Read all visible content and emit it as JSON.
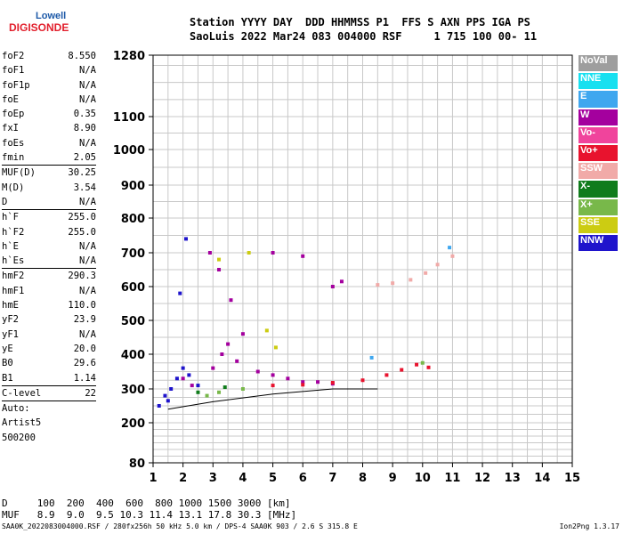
{
  "logo": {
    "top": "Lowell",
    "bottom": "DIGISONDE"
  },
  "header": {
    "line1": "Station YYYY DAY  DDD HHMMSS P1  FFS S AXN PPS IGA PS",
    "line2": "SaoLuis 2022 Mar24 083 004000 RSF     1 715 100 00- 11"
  },
  "params": [
    {
      "label": "foF2",
      "value": "8.550"
    },
    {
      "label": "foF1",
      "value": "N/A"
    },
    {
      "label": "foF1p",
      "value": "N/A"
    },
    {
      "label": "foE",
      "value": "N/A"
    },
    {
      "label": "foEp",
      "value": "0.35"
    },
    {
      "label": "fxI",
      "value": "8.90"
    },
    {
      "label": "foEs",
      "value": "N/A"
    },
    {
      "label": "fmin",
      "value": "2.05",
      "sep_after": true
    },
    {
      "label": "MUF(D)",
      "value": "30.25"
    },
    {
      "label": "M(D)",
      "value": "3.54"
    },
    {
      "label": "D",
      "value": "N/A",
      "sep_after": true
    },
    {
      "label": "h`F",
      "value": "255.0"
    },
    {
      "label": "h`F2",
      "value": "255.0"
    },
    {
      "label": "h`E",
      "value": "N/A"
    },
    {
      "label": "h`Es",
      "value": "N/A",
      "sep_after": true
    },
    {
      "label": "hmF2",
      "value": "290.3"
    },
    {
      "label": "hmF1",
      "value": "N/A"
    },
    {
      "label": "hmE",
      "value": "110.0"
    },
    {
      "label": "yF2",
      "value": "23.9"
    },
    {
      "label": "yF1",
      "value": "N/A"
    },
    {
      "label": "yE",
      "value": "20.0"
    },
    {
      "label": "B0",
      "value": "29.6"
    },
    {
      "label": "B1",
      "value": "1.14",
      "sep_after": true
    },
    {
      "label": "C-level",
      "value": "22",
      "sep_after": true
    }
  ],
  "params_footer": [
    "Auto:",
    "Artist5",
    "500200"
  ],
  "legend": [
    {
      "label": "NoVal",
      "color": "#9e9e9e"
    },
    {
      "label": "NNE",
      "color": "#18e0f0"
    },
    {
      "label": "E",
      "color": "#3fa7ef"
    },
    {
      "label": "W",
      "color": "#a4009e"
    },
    {
      "label": "Vo-",
      "color": "#f0449c"
    },
    {
      "label": "Vo+",
      "color": "#e8132e"
    },
    {
      "label": "SSW",
      "color": "#f1aaa8"
    },
    {
      "label": "X-",
      "color": "#107c1c"
    },
    {
      "label": "X+",
      "color": "#78b84a"
    },
    {
      "label": "SSE",
      "color": "#cccc12"
    },
    {
      "label": "NNW",
      "color": "#1f14cc"
    }
  ],
  "footer": {
    "d_line": "D     100  200  400  600  800 1000 1500 3000 [km]",
    "muf_line": "MUF   8.9  9.0  9.5 10.3 11.4 13.1 17.8 30.3 [MHz]",
    "file": "SAA0K_2022083004000.RSF / 280fx256h 50 kHz 5.0 km / DPS-4 SAA0K 903 / 2.6 S 315.8 E",
    "version": "Ion2Png 1.3.17"
  },
  "chart_data": {
    "type": "scatter",
    "x_ticks": [
      "1",
      "2",
      "3",
      "4",
      "5",
      "6",
      "7",
      "8",
      "9",
      "10",
      "11",
      "12",
      "13",
      "14",
      "15"
    ],
    "y_ticks": [
      "80",
      "200",
      "300",
      "400",
      "500",
      "600",
      "700",
      "800",
      "900",
      "1000",
      "1100",
      "1280"
    ],
    "xlim": [
      1,
      15
    ],
    "y_axis": {
      "scale": "nonlinear",
      "tick_values": [
        80,
        200,
        300,
        400,
        500,
        600,
        700,
        800,
        900,
        1000,
        1100,
        1280
      ]
    },
    "grid": true,
    "series": [
      {
        "name": "W",
        "color": "#a4009e",
        "points": [
          [
            2.0,
            330
          ],
          [
            2.3,
            310
          ],
          [
            3.0,
            360
          ],
          [
            3.3,
            400
          ],
          [
            3.5,
            430
          ],
          [
            3.8,
            380
          ],
          [
            4.0,
            460
          ],
          [
            4.5,
            350
          ],
          [
            5.0,
            340
          ],
          [
            5.5,
            330
          ],
          [
            6.0,
            320
          ],
          [
            6.5,
            320
          ],
          [
            7.0,
            315
          ],
          [
            2.9,
            700
          ],
          [
            3.2,
            650
          ],
          [
            3.6,
            560
          ],
          [
            5.0,
            700
          ],
          [
            6.0,
            690
          ],
          [
            7.0,
            600
          ],
          [
            7.3,
            615
          ]
        ]
      },
      {
        "name": "NNW",
        "color": "#1f14cc",
        "points": [
          [
            1.2,
            250
          ],
          [
            1.4,
            280
          ],
          [
            1.6,
            300
          ],
          [
            1.8,
            330
          ],
          [
            2.0,
            360
          ],
          [
            2.2,
            340
          ],
          [
            2.5,
            310
          ],
          [
            1.9,
            580
          ],
          [
            2.1,
            740
          ],
          [
            1.5,
            265
          ]
        ]
      },
      {
        "name": "Vo+",
        "color": "#e8132e",
        "points": [
          [
            5.0,
            310
          ],
          [
            6.0,
            312
          ],
          [
            7.0,
            318
          ],
          [
            8.0,
            325
          ],
          [
            8.8,
            340
          ],
          [
            9.3,
            355
          ],
          [
            9.8,
            370
          ],
          [
            10.2,
            362
          ]
        ]
      },
      {
        "name": "SSW",
        "color": "#f1aaa8",
        "points": [
          [
            8.5,
            605
          ],
          [
            9.0,
            610
          ],
          [
            9.6,
            620
          ],
          [
            10.1,
            640
          ],
          [
            10.5,
            665
          ],
          [
            11.0,
            690
          ]
        ]
      },
      {
        "name": "X+",
        "color": "#78b84a",
        "points": [
          [
            2.8,
            280
          ],
          [
            3.2,
            290
          ],
          [
            4.0,
            300
          ],
          [
            10.0,
            375
          ]
        ]
      },
      {
        "name": "SSE",
        "color": "#cccc12",
        "points": [
          [
            3.2,
            680
          ],
          [
            4.2,
            700
          ],
          [
            4.8,
            470
          ],
          [
            5.1,
            420
          ]
        ]
      },
      {
        "name": "E",
        "color": "#3fa7ef",
        "points": [
          [
            8.3,
            390
          ],
          [
            10.9,
            715
          ]
        ]
      },
      {
        "name": "X-",
        "color": "#107c1c",
        "points": [
          [
            2.5,
            290
          ],
          [
            3.4,
            305
          ]
        ]
      }
    ],
    "trace_line": {
      "points": [
        [
          1.5,
          240
        ],
        [
          3.0,
          262
        ],
        [
          5.0,
          285
        ],
        [
          7.0,
          300
        ],
        [
          8.5,
          300
        ]
      ]
    }
  }
}
